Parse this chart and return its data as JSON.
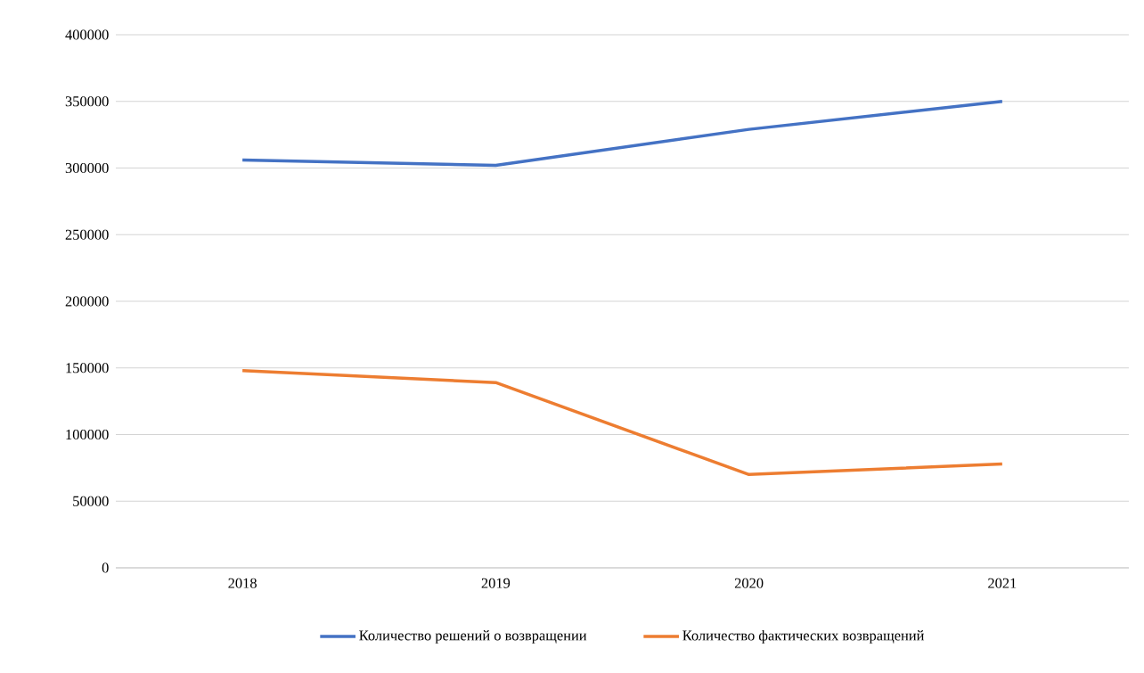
{
  "chart_data": {
    "type": "line",
    "categories": [
      "2018",
      "2019",
      "2020",
      "2021"
    ],
    "series": [
      {
        "name": "Количество решений о возвращении",
        "color": "#4472c4",
        "values": [
          306000,
          302000,
          329000,
          350000
        ]
      },
      {
        "name": "Количество фактических возвращений",
        "color": "#ed7d31",
        "values": [
          148000,
          139000,
          70000,
          78000
        ]
      }
    ],
    "ylim": [
      0,
      400000
    ],
    "yticks": [
      0,
      50000,
      100000,
      150000,
      200000,
      250000,
      300000,
      350000,
      400000
    ],
    "grid": "y",
    "legend": "bottom",
    "marker": "none",
    "line_style": "solid"
  }
}
